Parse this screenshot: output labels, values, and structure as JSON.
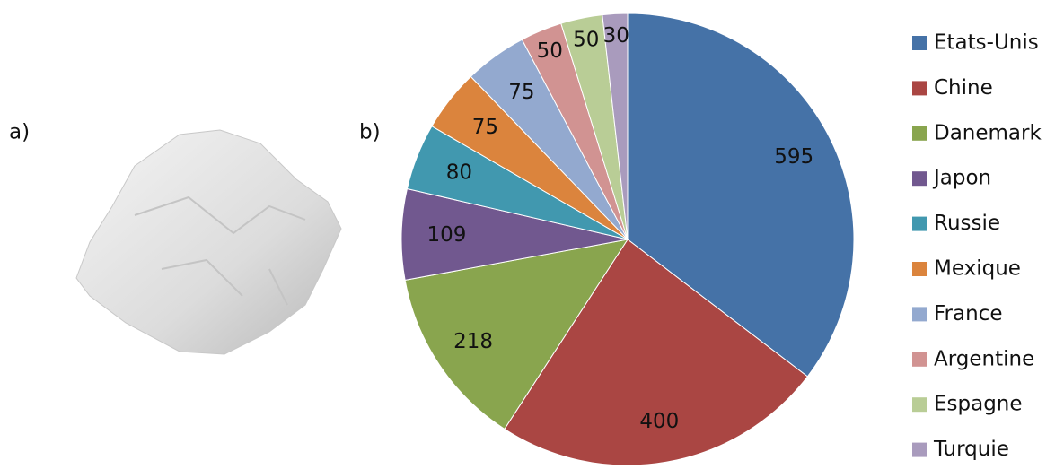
{
  "panel_labels": [
    "a)",
    "b)"
  ],
  "chart_data": {
    "type": "pie",
    "categories": [
      "Etats-Unis",
      "Chine",
      "Danemark",
      "Japon",
      "Russie",
      "Mexique",
      "France",
      "Argentine",
      "Espagne",
      "Turquie"
    ],
    "values": [
      595,
      400,
      218,
      109,
      80,
      75,
      75,
      50,
      50,
      30
    ],
    "colors": [
      "#4572a7",
      "#aa4643",
      "#89a54e",
      "#71588f",
      "#4198af",
      "#db843d",
      "#93a9cf",
      "#d19392",
      "#b9cd96",
      "#a99bbd"
    ],
    "legend": "right"
  }
}
